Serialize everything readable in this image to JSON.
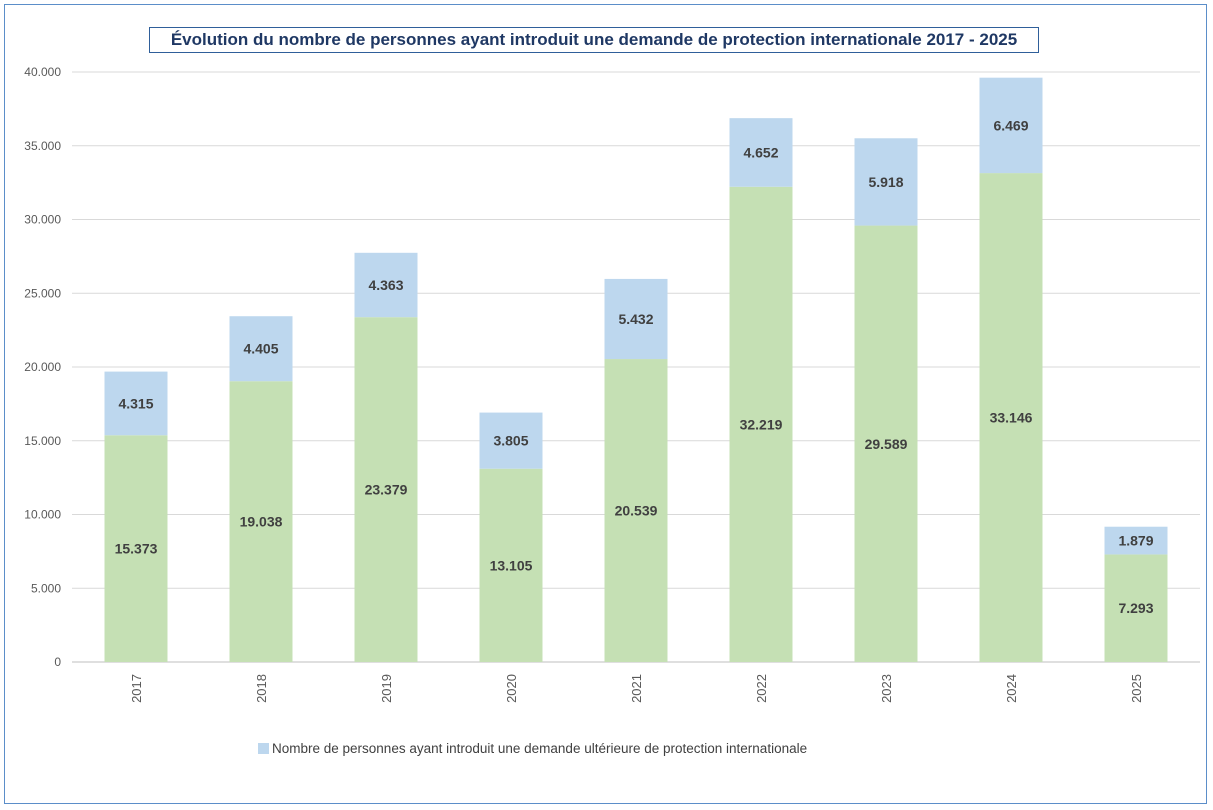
{
  "chart_data": {
    "type": "bar",
    "stacked": true,
    "title": "Évolution du nombre de personnes ayant introduit une demande de protection internationale 2017 - 2025",
    "categories": [
      "2017",
      "2018",
      "2019",
      "2020",
      "2021",
      "2022",
      "2023",
      "2024",
      "2025"
    ],
    "series": [
      {
        "values": [
          15373,
          19038,
          23379,
          13105,
          20539,
          32219,
          29589,
          33146,
          7293
        ],
        "labels": [
          "15.373",
          "19.038",
          "23.379",
          "13.105",
          "20.539",
          "32.219",
          "29.589",
          "33.146",
          "7.293"
        ],
        "color": "#c5e0b4"
      },
      {
        "name": "Nombre de personnes ayant introduit une demande ultérieure de protection internationale",
        "values": [
          4315,
          4405,
          4363,
          3805,
          5432,
          4652,
          5918,
          6469,
          1879
        ],
        "labels": [
          "4.315",
          "4.405",
          "4.363",
          "3.805",
          "5.432",
          "4.652",
          "5.918",
          "6.469",
          "1.879"
        ],
        "color": "#bdd7ee"
      }
    ],
    "ylim": [
      0,
      40000
    ],
    "yticks": [
      0,
      5000,
      10000,
      15000,
      20000,
      25000,
      30000,
      35000,
      40000
    ],
    "ytick_labels": [
      "0",
      "5.000",
      "10.000",
      "15.000",
      "20.000",
      "25.000",
      "30.000",
      "35.000",
      "40.000"
    ],
    "grid": true,
    "legend_position": "bottom-left",
    "colors": {
      "frame": "#5b8ec9",
      "title": "#1f3864",
      "grid": "#d9d9d9",
      "axis_text": "#595959",
      "data_label": "#404040"
    }
  }
}
